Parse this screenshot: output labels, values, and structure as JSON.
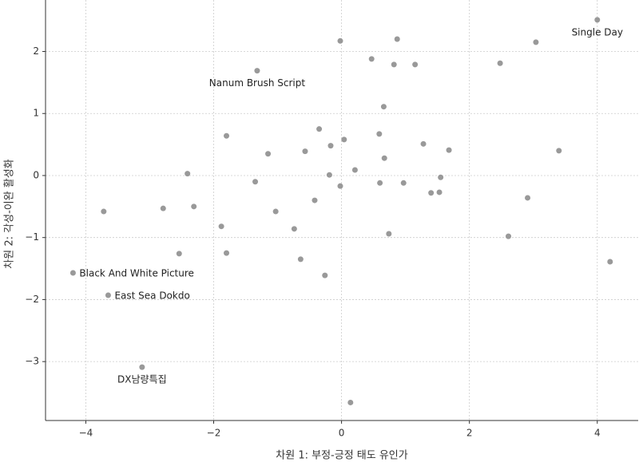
{
  "chart_data": {
    "type": "scatter",
    "xlabel": "차원 1: 부정-긍정 태도 유인가",
    "ylabel": "차원 2: 각성-이완 활성화",
    "color": "#999999",
    "grid": true,
    "xlim": [
      -4.63,
      4.64
    ],
    "ylim": [
      -3.95,
      2.83
    ],
    "xticks": [
      {
        "value": -4,
        "label": "−4"
      },
      {
        "value": -2,
        "label": "−2"
      },
      0,
      2,
      4
    ],
    "yticks": [
      {
        "value": -3,
        "label": "−3"
      },
      {
        "value": -2,
        "label": "−2"
      },
      {
        "value": -1,
        "label": "−1"
      },
      0,
      1,
      2
    ],
    "x": [
      4.0,
      -1.32,
      -4.2,
      -3.65,
      -3.12,
      -0.02,
      0.87,
      3.04,
      0.47,
      0.82,
      1.15,
      2.48,
      0.66,
      -0.35,
      -1.8,
      0.04,
      0.59,
      -0.17,
      1.28,
      1.68,
      3.4,
      -0.57,
      -1.15,
      0.67,
      0.21,
      -2.41,
      -0.19,
      1.55,
      -1.35,
      0.6,
      0.97,
      -0.02,
      1.4,
      1.53,
      2.91,
      -0.42,
      -2.31,
      -2.79,
      -3.72,
      -1.03,
      -1.88,
      -0.74,
      0.74,
      2.61,
      -2.54,
      -1.8,
      -0.64,
      4.2,
      -0.26,
      0.14
    ],
    "y": [
      2.51,
      1.69,
      -1.57,
      -1.93,
      -3.09,
      2.17,
      2.2,
      2.15,
      1.88,
      1.79,
      1.79,
      1.81,
      1.11,
      0.75,
      0.64,
      0.58,
      0.67,
      0.48,
      0.51,
      0.41,
      0.4,
      0.39,
      0.35,
      0.28,
      0.09,
      0.03,
      0.01,
      -0.03,
      -0.1,
      -0.12,
      -0.12,
      -0.17,
      -0.28,
      -0.27,
      -0.36,
      -0.4,
      -0.5,
      -0.53,
      -0.58,
      -0.58,
      -0.82,
      -0.86,
      -0.94,
      -0.98,
      -1.26,
      -1.25,
      -1.35,
      -1.39,
      -1.61,
      -3.66
    ],
    "point_labels": [
      "Single Day",
      "Nanum Brush Script",
      "Black And White Picture",
      "East Sea Dokdo",
      "DX남량특집",
      null,
      null,
      null,
      null,
      null,
      null,
      null,
      null,
      null,
      null,
      null,
      null,
      null,
      null,
      null,
      null,
      null,
      null,
      null,
      null,
      null,
      null,
      null,
      null,
      null,
      null,
      null,
      null,
      null,
      null,
      null,
      null,
      null,
      null,
      null,
      null,
      null,
      null,
      null,
      null,
      null,
      null,
      null,
      null,
      null
    ]
  }
}
